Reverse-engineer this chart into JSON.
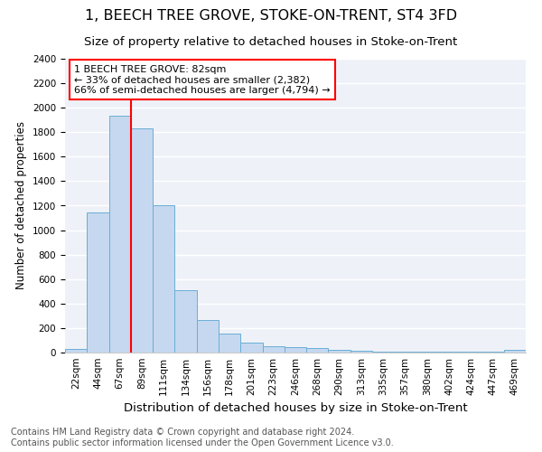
{
  "title": "1, BEECH TREE GROVE, STOKE-ON-TRENT, ST4 3FD",
  "subtitle": "Size of property relative to detached houses in Stoke-on-Trent",
  "xlabel": "Distribution of detached houses by size in Stoke-on-Trent",
  "ylabel": "Number of detached properties",
  "categories": [
    "22sqm",
    "44sqm",
    "67sqm",
    "89sqm",
    "111sqm",
    "134sqm",
    "156sqm",
    "178sqm",
    "201sqm",
    "223sqm",
    "246sqm",
    "268sqm",
    "290sqm",
    "313sqm",
    "335sqm",
    "357sqm",
    "380sqm",
    "402sqm",
    "424sqm",
    "447sqm",
    "469sqm"
  ],
  "values": [
    30,
    1145,
    1935,
    1830,
    1200,
    510,
    265,
    155,
    80,
    50,
    45,
    40,
    20,
    15,
    5,
    5,
    5,
    5,
    5,
    5,
    20
  ],
  "bar_color": "#c5d8f0",
  "bar_edge_color": "#6aaed6",
  "vline_color": "red",
  "vline_pos": 2.5,
  "annotation_text": "1 BEECH TREE GROVE: 82sqm\n← 33% of detached houses are smaller (2,382)\n66% of semi-detached houses are larger (4,794) →",
  "annotation_box_color": "white",
  "annotation_box_edge": "red",
  "ylim": [
    0,
    2400
  ],
  "yticks": [
    0,
    200,
    400,
    600,
    800,
    1000,
    1200,
    1400,
    1600,
    1800,
    2000,
    2200,
    2400
  ],
  "footer1": "Contains HM Land Registry data © Crown copyright and database right 2024.",
  "footer2": "Contains public sector information licensed under the Open Government Licence v3.0.",
  "bg_color": "#eef2f8",
  "grid_color": "#ffffff",
  "title_fontsize": 11.5,
  "subtitle_fontsize": 9.5,
  "xlabel_fontsize": 9.5,
  "ylabel_fontsize": 8.5,
  "tick_fontsize": 7.5,
  "annotation_fontsize": 8,
  "footer_fontsize": 7
}
